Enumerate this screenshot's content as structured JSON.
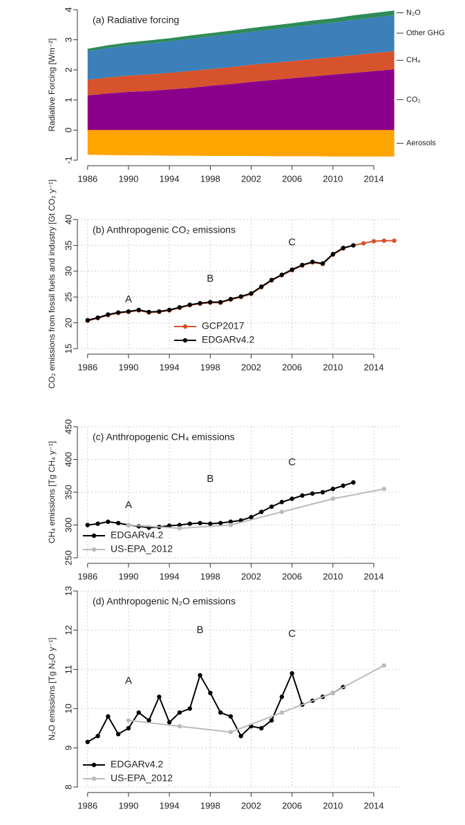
{
  "chart_data": [
    {
      "type": "area",
      "title": "(a) Radiative forcing",
      "y_label": "Radiative Forcing [Wm⁻²]",
      "x": [
        1986,
        1988,
        1990,
        1992,
        1994,
        1996,
        1998,
        2000,
        2002,
        2004,
        2006,
        2008,
        2010,
        2012,
        2014,
        2016
      ],
      "series": [
        {
          "name": "CO₂",
          "color": "#8b008b",
          "values": [
            1.15,
            1.22,
            1.27,
            1.3,
            1.35,
            1.4,
            1.47,
            1.53,
            1.6,
            1.66,
            1.72,
            1.78,
            1.84,
            1.9,
            1.96,
            2.02
          ]
        },
        {
          "name": "CH₄",
          "color": "#d6532c",
          "values": [
            0.52,
            0.53,
            0.54,
            0.55,
            0.55,
            0.56,
            0.56,
            0.56,
            0.57,
            0.57,
            0.57,
            0.58,
            0.58,
            0.59,
            0.6,
            0.6
          ]
        },
        {
          "name": "Other GHG",
          "color": "#3b80b8",
          "values": [
            0.95,
            0.98,
            1.01,
            1.03,
            1.05,
            1.07,
            1.08,
            1.09,
            1.1,
            1.11,
            1.13,
            1.14,
            1.15,
            1.17,
            1.18,
            1.2
          ]
        },
        {
          "name": "N₂O",
          "color": "#2e8b57",
          "values": [
            0.08,
            0.09,
            0.09,
            0.1,
            0.1,
            0.11,
            0.11,
            0.12,
            0.12,
            0.13,
            0.13,
            0.14,
            0.14,
            0.15,
            0.15,
            0.15
          ]
        },
        {
          "name": "Aerosols",
          "color": "#ffa500",
          "values": [
            -0.82,
            -0.83,
            -0.84,
            -0.84,
            -0.85,
            -0.85,
            -0.86,
            -0.86,
            -0.86,
            -0.87,
            -0.87,
            -0.87,
            -0.88,
            -0.88,
            -0.88,
            -0.88
          ]
        }
      ],
      "xlim": [
        1985,
        2016.5
      ],
      "xticks": [
        1986,
        1990,
        1994,
        1998,
        2002,
        2006,
        2010,
        2014
      ],
      "ylim": [
        -1,
        4
      ],
      "yticks": [
        -1,
        0,
        1,
        2,
        3,
        4
      ],
      "grid": false
    },
    {
      "type": "line",
      "title": "(b) Anthropogenic CO₂ emissions",
      "y_label": "CO₂ emissions from fossil fuels and industry [Gt CO₂ y⁻¹]",
      "series": [
        {
          "name": "GCP2017",
          "color": "#d6532c",
          "x": [
            1986,
            1987,
            1988,
            1989,
            1990,
            1991,
            1992,
            1993,
            1994,
            1995,
            1996,
            1997,
            1998,
            1999,
            2000,
            2001,
            2002,
            2003,
            2004,
            2005,
            2006,
            2007,
            2008,
            2009,
            2010,
            2011,
            2012,
            2013,
            2014,
            2015,
            2016
          ],
          "values": [
            20.4,
            20.9,
            21.5,
            21.9,
            22.1,
            22.4,
            22.0,
            22.1,
            22.4,
            22.9,
            23.4,
            23.7,
            23.9,
            23.9,
            24.5,
            25.0,
            25.6,
            26.9,
            28.2,
            29.2,
            30.2,
            31.1,
            31.7,
            31.4,
            33.2,
            34.4,
            35.0,
            35.4,
            35.8,
            35.9,
            35.9
          ]
        },
        {
          "name": "EDGARv4.2",
          "color": "#000000",
          "x": [
            1986,
            1987,
            1988,
            1989,
            1990,
            1991,
            1992,
            1993,
            1994,
            1995,
            1996,
            1997,
            1998,
            1999,
            2000,
            2001,
            2002,
            2003,
            2004,
            2005,
            2006,
            2007,
            2008,
            2009,
            2010,
            2011,
            2012
          ],
          "values": [
            20.5,
            21.0,
            21.6,
            22.0,
            22.2,
            22.5,
            22.1,
            22.2,
            22.5,
            23.0,
            23.5,
            23.8,
            24.0,
            24.0,
            24.6,
            25.1,
            25.7,
            27.0,
            28.3,
            29.3,
            30.3,
            31.2,
            31.8,
            31.5,
            33.3,
            34.5,
            35.0
          ]
        }
      ],
      "annotations": [
        {
          "label": "A",
          "x": 1990,
          "y": 24.5,
          "color": "#ffa040"
        },
        {
          "label": "B",
          "x": 1998,
          "y": 28.5,
          "color": "#9b30b0"
        },
        {
          "label": "C",
          "x": 2006,
          "y": 35.5,
          "color": "#3a3aa8"
        }
      ],
      "legend": "bottom",
      "xlim": [
        1985,
        2016.5
      ],
      "xticks": [
        1986,
        1990,
        1994,
        1998,
        2002,
        2006,
        2010,
        2014
      ],
      "ylim": [
        15,
        40
      ],
      "yticks": [
        15,
        20,
        25,
        30,
        35,
        40
      ],
      "grid": true
    },
    {
      "type": "line",
      "title": "(c) Anthropogenic CH₄ emissions",
      "y_label": "CH₄ emissions [Tg CH₄ y⁻¹]",
      "series": [
        {
          "name": "EDGARv4.2",
          "color": "#000000",
          "x": [
            1986,
            1987,
            1988,
            1989,
            1990,
            1991,
            1992,
            1993,
            1994,
            1995,
            1996,
            1997,
            1998,
            1999,
            2000,
            2001,
            2002,
            2003,
            2004,
            2005,
            2006,
            2007,
            2008,
            2009,
            2010,
            2011,
            2012
          ],
          "values": [
            300,
            302,
            305,
            303,
            300,
            298,
            296,
            297,
            299,
            300,
            302,
            303,
            302,
            303,
            305,
            307,
            312,
            320,
            328,
            335,
            340,
            345,
            348,
            350,
            355,
            360,
            365
          ]
        },
        {
          "name": "US-EPA_2012",
          "color": "#bbbbbb",
          "x": [
            1990,
            1995,
            2000,
            2005,
            2010,
            2015
          ],
          "values": [
            300,
            295,
            300,
            320,
            340,
            355
          ]
        }
      ],
      "annotations": [
        {
          "label": "A",
          "x": 1990,
          "y": 330,
          "color": "#ffa040"
        },
        {
          "label": "B",
          "x": 1998,
          "y": 370,
          "color": "#9b30b0"
        },
        {
          "label": "C",
          "x": 2006,
          "y": 395,
          "color": "#3a3aa8"
        }
      ],
      "legend": "bottom-left",
      "xlim": [
        1985,
        2016.5
      ],
      "xticks": [
        1986,
        1990,
        1994,
        1998,
        2002,
        2006,
        2010,
        2014
      ],
      "ylim": [
        250,
        450
      ],
      "yticks": [
        250,
        300,
        350,
        400,
        450
      ],
      "grid": true
    },
    {
      "type": "line",
      "title": "(d) Anthropogenic N₂O emissions",
      "y_label": "N₂O emissions [Tg N₂O y⁻¹]",
      "series": [
        {
          "name": "EDGARv4.2",
          "color": "#000000",
          "x": [
            1986,
            1987,
            1988,
            1989,
            1990,
            1991,
            1992,
            1993,
            1994,
            1995,
            1996,
            1997,
            1998,
            1999,
            2000,
            2001,
            2002,
            2003,
            2004,
            2005,
            2006,
            2007,
            2008,
            2009,
            2010,
            2011
          ],
          "values": [
            9.15,
            9.3,
            9.8,
            9.35,
            9.5,
            9.9,
            9.7,
            10.3,
            9.65,
            9.9,
            10.0,
            10.85,
            10.4,
            9.9,
            9.8,
            9.3,
            9.55,
            9.5,
            9.7,
            10.3,
            10.9,
            10.1,
            10.2,
            10.3,
            10.4,
            10.55
          ]
        },
        {
          "name": "US-EPA_2012",
          "color": "#bbbbbb",
          "x": [
            1990,
            1995,
            2000,
            2005,
            2010,
            2015
          ],
          "values": [
            9.7,
            9.55,
            9.4,
            9.9,
            10.4,
            11.1
          ]
        }
      ],
      "annotations": [
        {
          "label": "A",
          "x": 1990,
          "y": 10.7,
          "color": "#ffa040"
        },
        {
          "label": "B",
          "x": 1997,
          "y": 12.0,
          "color": "#9b30b0"
        },
        {
          "label": "C",
          "x": 2006,
          "y": 11.9,
          "color": "#3a3aa8"
        }
      ],
      "legend": "bottom-left",
      "xlim": [
        1985,
        2016.5
      ],
      "xticks": [
        1986,
        1990,
        1994,
        1998,
        2002,
        2006,
        2010,
        2014
      ],
      "ylim": [
        8,
        13
      ],
      "yticks": [
        8,
        9,
        10,
        11,
        12,
        13
      ],
      "grid": true
    }
  ]
}
